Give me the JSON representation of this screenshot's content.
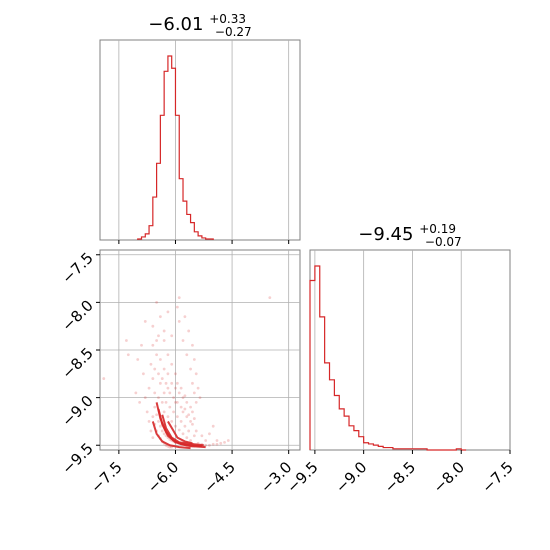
{
  "chart_data": [
    {
      "type": "histogram",
      "panel": "top-left",
      "title": {
        "value": "−6.01",
        "upper": "+0.33",
        "lower": "−0.27"
      },
      "xlim": [
        -8.0,
        -2.7
      ],
      "xticks": [
        -7.5,
        -6.0,
        -4.5,
        -3.0
      ],
      "grid": true,
      "color": "#d62728",
      "bins": [
        {
          "x": -6.95,
          "count": 1
        },
        {
          "x": -6.85,
          "count": 3
        },
        {
          "x": -6.75,
          "count": 6
        },
        {
          "x": -6.65,
          "count": 14
        },
        {
          "x": -6.55,
          "count": 42
        },
        {
          "x": -6.45,
          "count": 75
        },
        {
          "x": -6.35,
          "count": 122
        },
        {
          "x": -6.25,
          "count": 165
        },
        {
          "x": -6.15,
          "count": 180
        },
        {
          "x": -6.05,
          "count": 168
        },
        {
          "x": -5.95,
          "count": 122
        },
        {
          "x": -5.85,
          "count": 60
        },
        {
          "x": -5.75,
          "count": 38
        },
        {
          "x": -5.65,
          "count": 25
        },
        {
          "x": -5.55,
          "count": 17
        },
        {
          "x": -5.45,
          "count": 8
        },
        {
          "x": -5.35,
          "count": 4
        },
        {
          "x": -5.25,
          "count": 2
        },
        {
          "x": -5.15,
          "count": 1
        },
        {
          "x": -5.05,
          "count": 1
        }
      ]
    },
    {
      "type": "scatter",
      "panel": "bottom-left",
      "xlim": [
        -8.0,
        -2.7
      ],
      "ylim": [
        -9.55,
        -7.45
      ],
      "xticks": [
        -7.5,
        -6.0,
        -4.5,
        -3.0
      ],
      "yticks": [
        -7.5,
        -8.0,
        -8.5,
        -9.0,
        -9.5
      ],
      "xticklabels": [
        "−7.5",
        "−6.0",
        "−4.5",
        "−3.0"
      ],
      "yticklabels": [
        "−7.5",
        "−8.0",
        "−8.5",
        "−9.0",
        "−9.5"
      ],
      "grid": true,
      "color": "#d62728",
      "points": [
        [
          -6.55,
          -9.1
        ],
        [
          -6.5,
          -9.18
        ],
        [
          -6.45,
          -9.25
        ],
        [
          -6.4,
          -9.3
        ],
        [
          -6.35,
          -9.35
        ],
        [
          -6.3,
          -9.38
        ],
        [
          -6.25,
          -9.4
        ],
        [
          -6.2,
          -9.42
        ],
        [
          -6.15,
          -9.44
        ],
        [
          -6.1,
          -9.45
        ],
        [
          -6.05,
          -9.46
        ],
        [
          -6.0,
          -9.47
        ],
        [
          -5.95,
          -9.47
        ],
        [
          -5.9,
          -9.48
        ],
        [
          -5.85,
          -9.48
        ],
        [
          -5.8,
          -9.49
        ],
        [
          -5.75,
          -9.49
        ],
        [
          -5.7,
          -9.5
        ],
        [
          -5.65,
          -9.5
        ],
        [
          -5.6,
          -9.5
        ],
        [
          -5.55,
          -9.51
        ],
        [
          -5.5,
          -9.51
        ],
        [
          -6.6,
          -9.2
        ],
        [
          -6.55,
          -9.28
        ],
        [
          -6.5,
          -9.35
        ],
        [
          -6.45,
          -9.4
        ],
        [
          -6.4,
          -9.43
        ],
        [
          -6.35,
          -9.46
        ],
        [
          -6.3,
          -9.48
        ],
        [
          -6.25,
          -9.5
        ],
        [
          -6.2,
          -9.51
        ],
        [
          -6.15,
          -9.52
        ],
        [
          -6.1,
          -9.52
        ],
        [
          -6.3,
          -9.15
        ],
        [
          -6.2,
          -9.2
        ],
        [
          -6.1,
          -9.25
        ],
        [
          -6.0,
          -9.3
        ],
        [
          -5.9,
          -9.34
        ],
        [
          -5.8,
          -9.38
        ],
        [
          -5.7,
          -9.42
        ],
        [
          -5.6,
          -9.45
        ],
        [
          -5.4,
          -9.48
        ],
        [
          -5.3,
          -9.49
        ],
        [
          -5.2,
          -9.5
        ],
        [
          -5.1,
          -9.5
        ],
        [
          -5.0,
          -9.49
        ],
        [
          -4.9,
          -9.49
        ],
        [
          -4.8,
          -9.48
        ],
        [
          -4.7,
          -9.47
        ],
        [
          -6.7,
          -8.9
        ],
        [
          -6.6,
          -8.8
        ],
        [
          -6.65,
          -8.65
        ],
        [
          -6.55,
          -8.95
        ],
        [
          -6.45,
          -9.0
        ],
        [
          -6.4,
          -8.85
        ],
        [
          -6.3,
          -8.95
        ],
        [
          -6.35,
          -9.05
        ],
        [
          -6.25,
          -9.05
        ],
        [
          -6.2,
          -8.9
        ],
        [
          -6.15,
          -9.1
        ],
        [
          -6.05,
          -9.15
        ],
        [
          -6.0,
          -9.05
        ],
        [
          -5.95,
          -9.2
        ],
        [
          -5.85,
          -9.25
        ],
        [
          -5.8,
          -9.15
        ],
        [
          -5.75,
          -9.3
        ],
        [
          -5.65,
          -9.35
        ],
        [
          -5.6,
          -9.25
        ],
        [
          -5.5,
          -9.4
        ],
        [
          -5.45,
          -9.35
        ],
        [
          -6.55,
          -8.7
        ],
        [
          -6.5,
          -8.55
        ],
        [
          -6.45,
          -8.75
        ],
        [
          -6.4,
          -8.6
        ],
        [
          -6.35,
          -8.8
        ],
        [
          -6.3,
          -8.7
        ],
        [
          -6.25,
          -8.85
        ],
        [
          -6.2,
          -8.75
        ],
        [
          -6.15,
          -8.95
        ],
        [
          -6.1,
          -8.85
        ],
        [
          -6.05,
          -9.0
        ],
        [
          -6.0,
          -8.9
        ],
        [
          -5.95,
          -9.05
        ],
        [
          -5.9,
          -8.95
        ],
        [
          -5.85,
          -9.1
        ],
        [
          -5.8,
          -9.0
        ],
        [
          -5.75,
          -9.12
        ],
        [
          -5.7,
          -9.2
        ],
        [
          -5.65,
          -9.18
        ],
        [
          -5.55,
          -9.28
        ],
        [
          -5.5,
          -9.22
        ],
        [
          -6.6,
          -8.45
        ],
        [
          -6.5,
          -8.4
        ],
        [
          -6.45,
          -8.35
        ],
        [
          -6.3,
          -8.4
        ],
        [
          -6.2,
          -8.55
        ],
        [
          -6.1,
          -8.65
        ],
        [
          -6.0,
          -8.75
        ],
        [
          -5.95,
          -8.85
        ],
        [
          -5.85,
          -8.9
        ],
        [
          -5.75,
          -8.98
        ],
        [
          -5.7,
          -9.05
        ],
        [
          -5.6,
          -9.1
        ],
        [
          -5.55,
          -9.15
        ],
        [
          -6.8,
          -8.2
        ],
        [
          -6.6,
          -8.25
        ],
        [
          -6.4,
          -8.15
        ],
        [
          -6.3,
          -8.3
        ],
        [
          -6.1,
          -8.35
        ],
        [
          -5.9,
          -8.2
        ],
        [
          -5.8,
          -8.4
        ],
        [
          -5.7,
          -8.55
        ],
        [
          -5.6,
          -8.7
        ],
        [
          -5.55,
          -8.85
        ],
        [
          -5.5,
          -8.95
        ],
        [
          -5.45,
          -9.05
        ],
        [
          -6.5,
          -8.0
        ],
        [
          -6.2,
          -8.1
        ],
        [
          -5.95,
          -8.05
        ],
        [
          -5.9,
          -7.95
        ],
        [
          -5.75,
          -8.15
        ],
        [
          -5.65,
          -8.3
        ],
        [
          -5.55,
          -8.45
        ],
        [
          -5.5,
          -8.6
        ],
        [
          -5.45,
          -8.75
        ],
        [
          -5.4,
          -8.9
        ],
        [
          -5.35,
          -9.0
        ],
        [
          -6.9,
          -8.45
        ],
        [
          -7.0,
          -8.6
        ],
        [
          -6.85,
          -8.75
        ],
        [
          -6.95,
          -9.05
        ],
        [
          -7.05,
          -8.95
        ],
        [
          -6.8,
          -9.0
        ],
        [
          -6.75,
          -9.15
        ],
        [
          -6.7,
          -9.25
        ],
        [
          -6.65,
          -9.35
        ],
        [
          -6.6,
          -9.42
        ],
        [
          -7.3,
          -8.4
        ],
        [
          -7.25,
          -8.55
        ],
        [
          -7.9,
          -8.8
        ],
        [
          -5.3,
          -9.4
        ],
        [
          -5.2,
          -9.45
        ],
        [
          -4.9,
          -9.45
        ],
        [
          -4.6,
          -9.45
        ],
        [
          -3.5,
          -7.95
        ],
        [
          -5.0,
          -9.3
        ],
        [
          -5.1,
          -9.38
        ]
      ]
    },
    {
      "type": "histogram",
      "panel": "bottom-right",
      "title": {
        "value": "−9.45",
        "upper": "+0.19",
        "lower": "−0.07"
      },
      "xlim": [
        -9.55,
        -7.5
      ],
      "xticks": [
        -9.5,
        -9.0,
        -8.5,
        -8.0,
        -7.5
      ],
      "xticklabels": [
        "−9.5",
        "−9.0",
        "−8.5",
        "−8.0",
        "−7.5"
      ],
      "grid": true,
      "color": "#d62728",
      "bins": [
        {
          "x": -9.525,
          "count": 140
        },
        {
          "x": -9.475,
          "count": 152
        },
        {
          "x": -9.425,
          "count": 110
        },
        {
          "x": -9.375,
          "count": 72
        },
        {
          "x": -9.325,
          "count": 58
        },
        {
          "x": -9.275,
          "count": 45
        },
        {
          "x": -9.225,
          "count": 34
        },
        {
          "x": -9.175,
          "count": 28
        },
        {
          "x": -9.125,
          "count": 20
        },
        {
          "x": -9.075,
          "count": 16
        },
        {
          "x": -9.025,
          "count": 11
        },
        {
          "x": -8.975,
          "count": 6
        },
        {
          "x": -8.925,
          "count": 5
        },
        {
          "x": -8.875,
          "count": 4
        },
        {
          "x": -8.825,
          "count": 3
        },
        {
          "x": -8.775,
          "count": 2
        },
        {
          "x": -8.725,
          "count": 2
        },
        {
          "x": -8.675,
          "count": 1
        },
        {
          "x": -8.625,
          "count": 1
        },
        {
          "x": -8.575,
          "count": 1
        },
        {
          "x": -8.525,
          "count": 1
        },
        {
          "x": -8.475,
          "count": 1
        },
        {
          "x": -8.425,
          "count": 1
        },
        {
          "x": -8.375,
          "count": 1
        },
        {
          "x": -8.325,
          "count": 0
        },
        {
          "x": -8.275,
          "count": 0
        },
        {
          "x": -8.225,
          "count": 0
        },
        {
          "x": -8.175,
          "count": 0
        },
        {
          "x": -8.125,
          "count": 0
        },
        {
          "x": -8.075,
          "count": 0
        },
        {
          "x": -8.025,
          "count": 1
        },
        {
          "x": -7.975,
          "count": 0
        }
      ]
    }
  ]
}
